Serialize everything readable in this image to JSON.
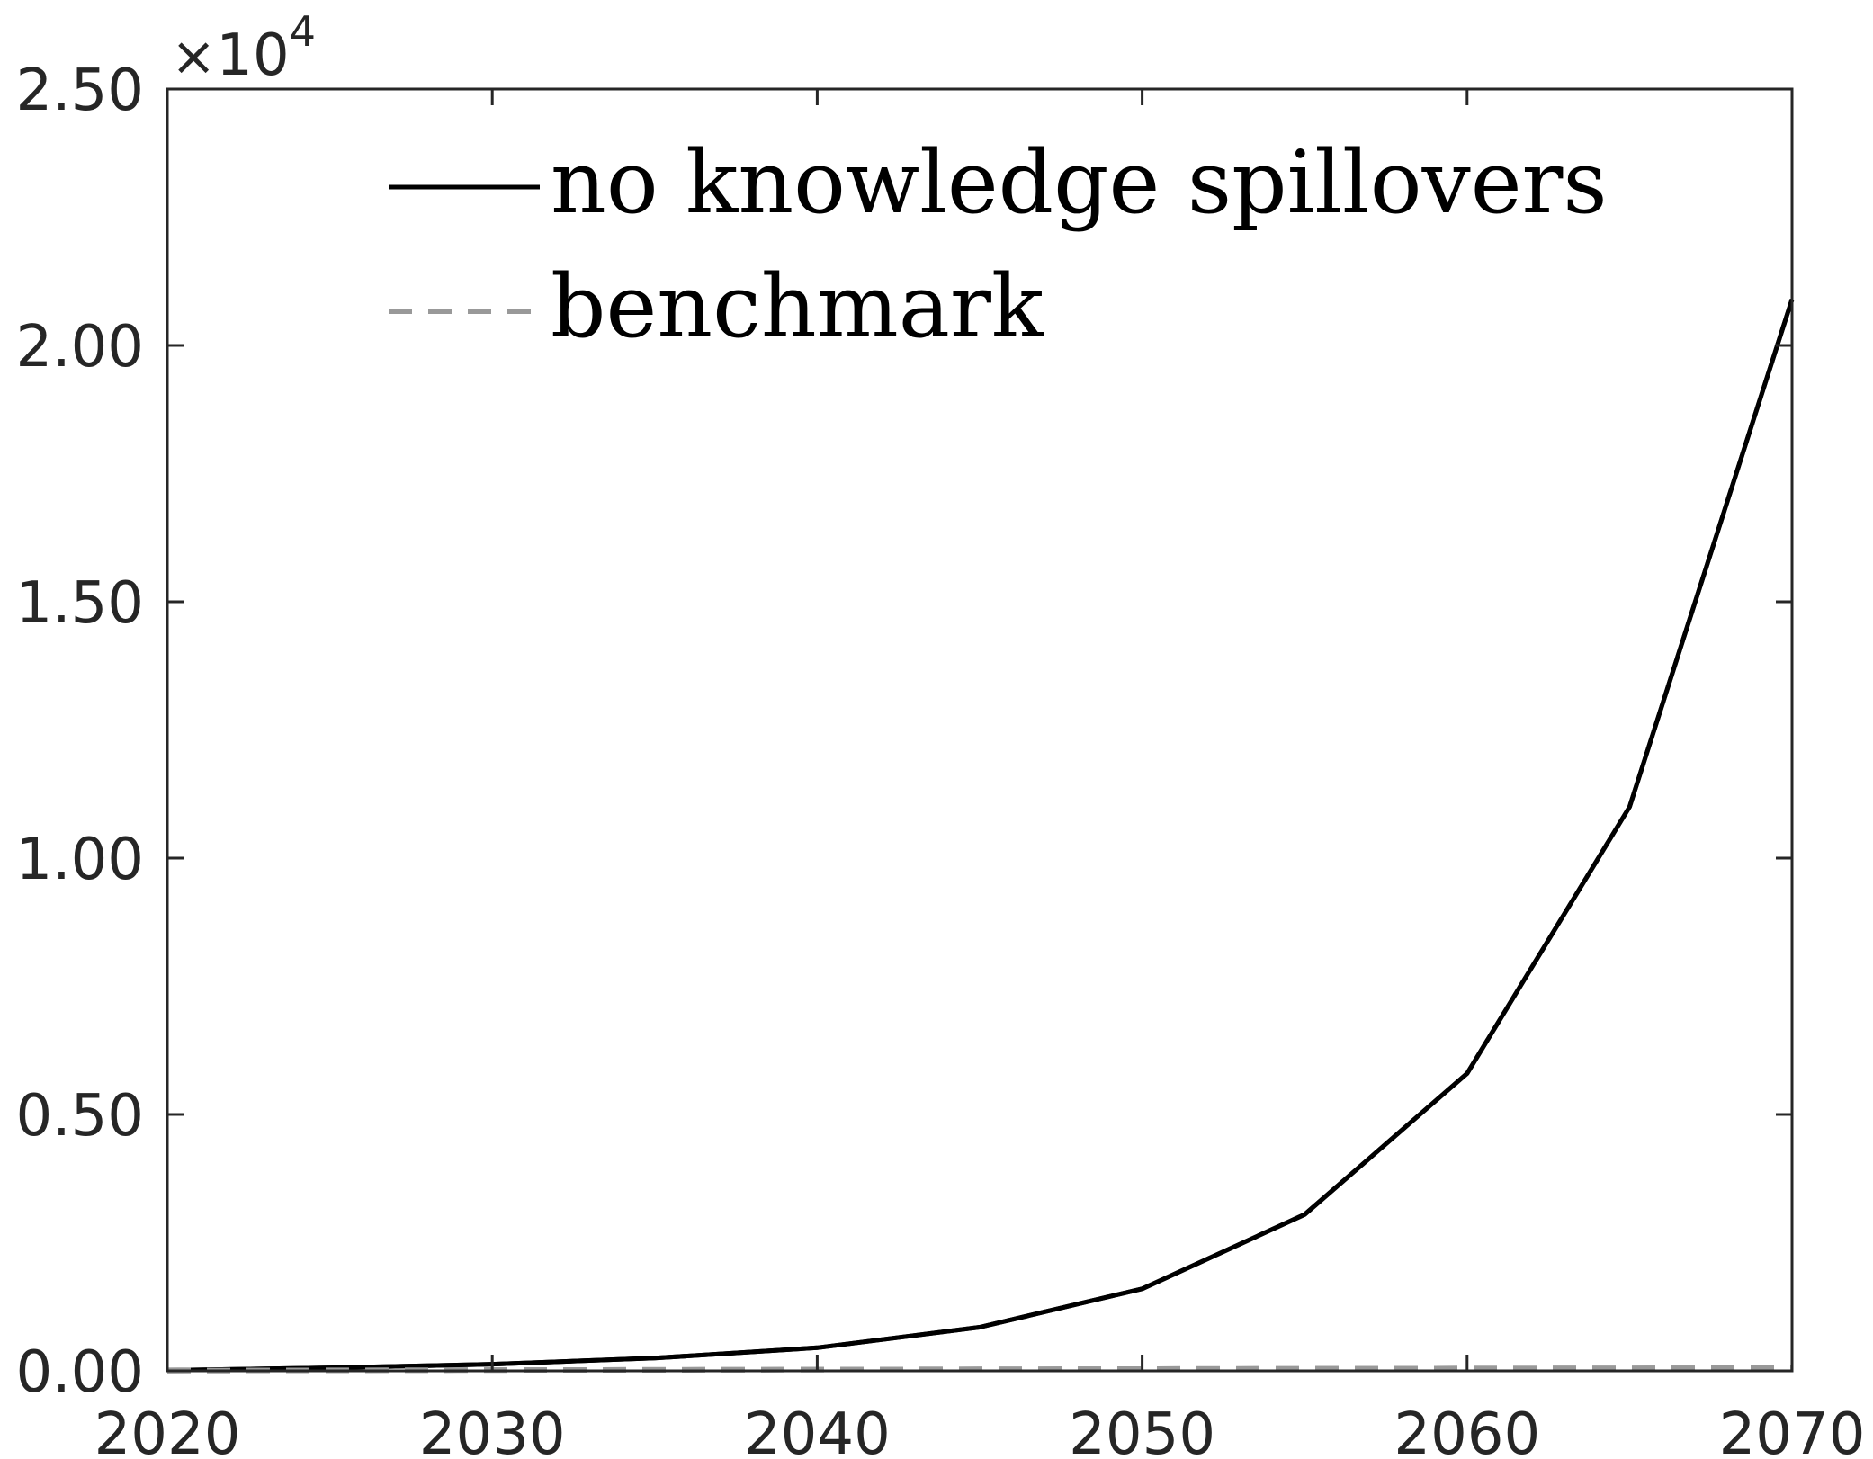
{
  "chart_data": {
    "type": "line",
    "title": "",
    "xlabel": "",
    "ylabel": "",
    "xlim": [
      2020,
      2070
    ],
    "ylim": [
      0,
      25000
    ],
    "y_exponent_label": {
      "times": "×",
      "base": "10",
      "power": "4"
    },
    "x_ticks": [
      2020,
      2030,
      2040,
      2050,
      2060,
      2070
    ],
    "x_tick_labels": [
      "2020",
      "2030",
      "2040",
      "2050",
      "2060",
      "2070"
    ],
    "y_ticks": [
      0,
      5000,
      10000,
      15000,
      20000,
      25000
    ],
    "y_tick_labels": [
      "0.00",
      "0.50",
      "1.00",
      "1.50",
      "2.00",
      "2.50"
    ],
    "grid": false,
    "legend_position": "top-center",
    "series": [
      {
        "name": "no knowledge spillovers",
        "color": "#000000",
        "style": "solid",
        "x": [
          2020,
          2025,
          2030,
          2035,
          2040,
          2045,
          2050,
          2055,
          2060,
          2065,
          2070
        ],
        "y": [
          10,
          60,
          130,
          250,
          450,
          850,
          1600,
          3050,
          5800,
          11000,
          20900
        ]
      },
      {
        "name": "benchmark",
        "color": "#999999",
        "style": "dashed",
        "x": [
          2020,
          2025,
          2030,
          2035,
          2040,
          2045,
          2050,
          2055,
          2060,
          2065,
          2070
        ],
        "y": [
          5,
          10,
          15,
          20,
          25,
          30,
          35,
          40,
          45,
          50,
          55
        ]
      }
    ]
  }
}
